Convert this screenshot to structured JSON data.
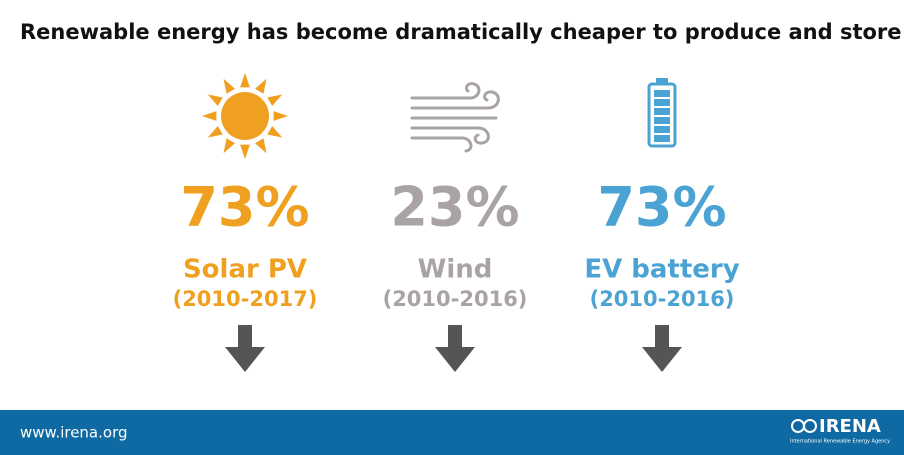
{
  "header": {
    "title": "Renewable energy has become dramatically cheaper to produce and store"
  },
  "items": [
    {
      "value": "73%",
      "label": "Solar PV",
      "period": "(2010-2017)"
    },
    {
      "value": "23%",
      "label": "Wind",
      "period": "(2010-2016)"
    },
    {
      "value": "73%",
      "label": "EV battery",
      "period": "(2010-2016)"
    }
  ],
  "footer": {
    "url": "www.irena.org",
    "logo": "IRENA",
    "tagline": "International Renewable Energy Agency"
  }
}
